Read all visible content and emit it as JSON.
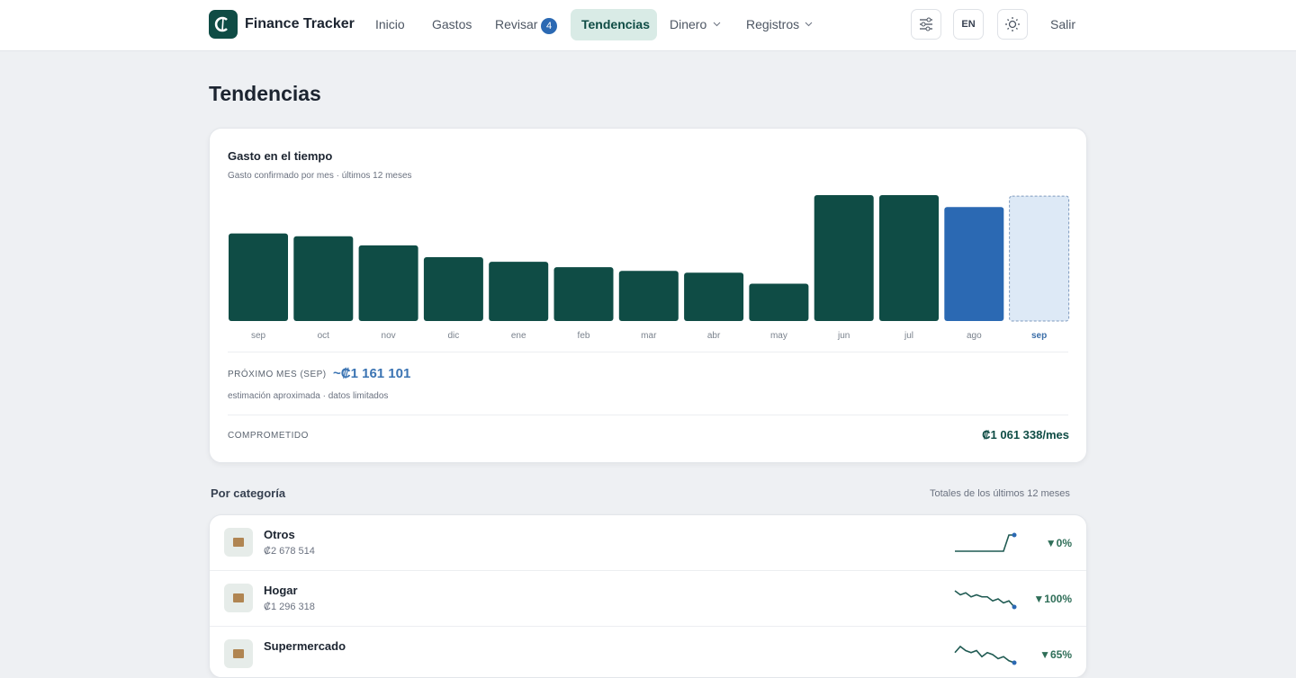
{
  "nav": {
    "brand": "Finance Tracker",
    "items": [
      "Inicio",
      "Gastos",
      "Revisar",
      "Tendencias",
      "Dinero",
      "Registros"
    ],
    "review_badge": 4,
    "lang": "EN",
    "logout": "Salir"
  },
  "page_title": "Tendencias",
  "chart_data": {
    "type": "bar",
    "title": "Gasto en el tiempo",
    "subtitle": "Gasto confirmado por mes · últimos 12 meses",
    "categories": [
      "sep",
      "oct",
      "nov",
      "dic",
      "ene",
      "feb",
      "mar",
      "abr",
      "may",
      "jun",
      "jul",
      "ago",
      "sep"
    ],
    "values": [
      814000,
      788000,
      703000,
      593000,
      551000,
      500000,
      466000,
      449000,
      347000,
      1170000,
      1170000,
      1059000,
      1161101
    ],
    "color": "#0f4c45",
    "current_color": "#2b69b3",
    "forecast_color": "#dde9f6",
    "forecast_label": "PRÓXIMO MES (SEP)",
    "forecast_value_label": "~₡1 161 101",
    "forecast_note": "estimación aproximada · datos limitados",
    "committed_label": "COMPROMETIDO",
    "committed_value": "₡1 061 338/mes"
  },
  "categories": {
    "title": "Por categoría",
    "note": "Totales de los últimos 12 meses",
    "rows": [
      {
        "name": "Otros",
        "total": "₡2 678 514",
        "change": "▼0%",
        "trend": [
          0,
          0,
          0,
          0,
          0,
          0,
          0,
          0,
          0,
          0,
          9,
          9
        ]
      },
      {
        "name": "Hogar",
        "total": "₡1 296 318",
        "change": "▼100%",
        "trend": [
          8,
          6,
          7,
          5,
          6,
          5,
          5,
          3,
          4,
          2,
          3,
          0
        ]
      },
      {
        "name": "Supermercado",
        "change": "▼65%",
        "trend": [
          6,
          9,
          7,
          6,
          7,
          4,
          6,
          5,
          3,
          4,
          2,
          1
        ]
      }
    ]
  }
}
